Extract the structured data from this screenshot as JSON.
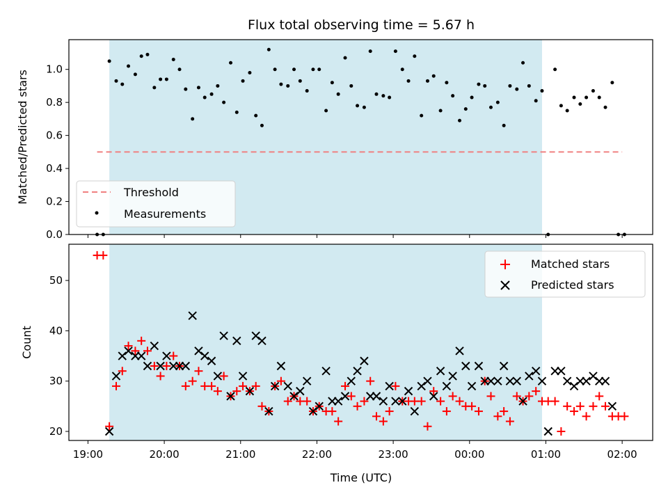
{
  "chart_data": [
    {
      "type": "scatter",
      "title": "Flux total observing time = 5.67 h",
      "ylabel": "Matched/Predicted stars",
      "xlabel": "",
      "ylim": [
        0,
        1.18
      ],
      "xlim_hours": [
        18.75,
        26.4
      ],
      "yticks": [
        0.0,
        0.2,
        0.4,
        0.6,
        0.8,
        1.0
      ],
      "ytick_labels": [
        "0.0",
        "0.2",
        "0.4",
        "0.6",
        "0.8",
        "1.0"
      ],
      "shaded_span_hours": [
        19.28,
        24.95
      ],
      "shaded_color": "#add8e6",
      "grid": false,
      "legend_position": "lower-left",
      "threshold": {
        "name": "Threshold",
        "value": 0.5,
        "x_range_hours": [
          19.12,
          26.0
        ],
        "color": "#f08080",
        "style": "dashed"
      },
      "series": [
        {
          "name": "Measurements",
          "color": "#000000",
          "x_hours": [
            19.12,
            19.2,
            19.28,
            19.37,
            19.45,
            19.53,
            19.62,
            19.7,
            19.78,
            19.87,
            19.95,
            20.03,
            20.12,
            20.2,
            20.28,
            20.37,
            20.45,
            20.53,
            20.62,
            20.7,
            20.78,
            20.87,
            20.95,
            21.03,
            21.12,
            21.2,
            21.28,
            21.37,
            21.45,
            21.53,
            21.62,
            21.7,
            21.78,
            21.87,
            21.95,
            22.03,
            22.12,
            22.2,
            22.28,
            22.37,
            22.45,
            22.53,
            22.62,
            22.7,
            22.78,
            22.87,
            22.95,
            23.03,
            23.12,
            23.2,
            23.28,
            23.37,
            23.45,
            23.53,
            23.62,
            23.7,
            23.78,
            23.87,
            23.95,
            24.03,
            24.12,
            24.2,
            24.28,
            24.37,
            24.45,
            24.53,
            24.62,
            24.7,
            24.78,
            24.87,
            24.95,
            25.03,
            25.12,
            25.2,
            25.28,
            25.37,
            25.45,
            25.53,
            25.62,
            25.7,
            25.78,
            25.87,
            25.95,
            26.03
          ],
          "y": [
            0.0,
            0.0,
            1.05,
            0.93,
            0.91,
            1.02,
            0.97,
            1.08,
            1.09,
            0.89,
            0.94,
            0.94,
            1.06,
            1.0,
            0.88,
            0.7,
            0.89,
            0.83,
            0.85,
            0.9,
            0.8,
            1.04,
            0.74,
            0.93,
            0.98,
            0.72,
            0.66,
            1.12,
            1.0,
            0.91,
            0.9,
            1.0,
            0.93,
            0.87,
            1.0,
            1.0,
            0.75,
            0.92,
            0.85,
            1.07,
            0.9,
            0.78,
            0.77,
            1.11,
            0.85,
            0.84,
            0.83,
            1.11,
            1.0,
            0.93,
            1.08,
            0.72,
            0.93,
            0.96,
            0.75,
            0.92,
            0.84,
            0.69,
            0.76,
            0.83,
            0.91,
            0.9,
            0.77,
            0.8,
            0.66,
            0.9,
            0.88,
            1.04,
            0.9,
            0.81,
            0.87,
            0.0,
            1.0,
            0.78,
            0.75,
            0.83,
            0.79,
            0.83,
            0.87,
            0.83,
            0.77,
            0.92,
            0.0,
            0.0
          ]
        }
      ]
    },
    {
      "type": "scatter",
      "title": "",
      "xlabel": "Time (UTC)",
      "ylabel": "Count",
      "ylim": [
        18.2,
        57.2
      ],
      "xlim_hours": [
        18.75,
        26.4
      ],
      "yticks": [
        20,
        30,
        40,
        50
      ],
      "ytick_labels": [
        "20",
        "30",
        "40",
        "50"
      ],
      "xticks_hours": [
        19,
        20,
        21,
        22,
        23,
        24,
        25,
        26
      ],
      "xtick_labels": [
        "19:00",
        "20:00",
        "21:00",
        "22:00",
        "23:00",
        "00:00",
        "01:00",
        "02:00"
      ],
      "shaded_span_hours": [
        19.28,
        24.95
      ],
      "shaded_color": "#add8e6",
      "grid": false,
      "legend_position": "top-right",
      "series": [
        {
          "name": "Matched stars",
          "marker": "plus",
          "color": "#ff0000",
          "x_hours": [
            19.12,
            19.2,
            19.28,
            19.37,
            19.45,
            19.53,
            19.62,
            19.7,
            19.78,
            19.87,
            19.95,
            20.03,
            20.12,
            20.2,
            20.28,
            20.37,
            20.45,
            20.53,
            20.62,
            20.7,
            20.78,
            20.87,
            20.95,
            21.03,
            21.12,
            21.2,
            21.28,
            21.37,
            21.45,
            21.53,
            21.62,
            21.7,
            21.78,
            21.87,
            21.95,
            22.03,
            22.12,
            22.2,
            22.28,
            22.37,
            22.45,
            22.53,
            22.62,
            22.7,
            22.78,
            22.87,
            22.95,
            23.03,
            23.12,
            23.2,
            23.28,
            23.37,
            23.45,
            23.53,
            23.62,
            23.7,
            23.78,
            23.87,
            23.95,
            24.03,
            24.12,
            24.2,
            24.28,
            24.37,
            24.45,
            24.53,
            24.62,
            24.7,
            24.78,
            24.87,
            24.95,
            25.03,
            25.12,
            25.2,
            25.28,
            25.37,
            25.45,
            25.53,
            25.62,
            25.7,
            25.78,
            25.87,
            25.95,
            26.03
          ],
          "y": [
            55,
            55,
            21,
            29,
            32,
            37,
            36,
            38,
            36,
            33,
            31,
            33,
            35,
            33,
            29,
            30,
            32,
            29,
            29,
            28,
            31,
            27,
            28,
            29,
            28,
            29,
            25,
            24,
            29,
            30,
            26,
            27,
            26,
            26,
            24,
            25,
            24,
            24,
            22,
            29,
            27,
            25,
            26,
            30,
            23,
            22,
            24,
            29,
            26,
            26,
            26,
            26,
            21,
            28,
            26,
            24,
            27,
            26,
            25,
            25,
            24,
            30,
            27,
            23,
            24,
            22,
            27,
            26,
            27,
            28,
            26,
            26,
            26,
            20,
            25,
            24,
            25,
            23,
            25,
            27,
            25,
            23,
            23,
            23
          ]
        },
        {
          "name": "Predicted stars",
          "marker": "x",
          "color": "#000000",
          "x_hours": [
            19.28,
            19.37,
            19.45,
            19.53,
            19.62,
            19.7,
            19.78,
            19.87,
            19.95,
            20.03,
            20.12,
            20.2,
            20.28,
            20.37,
            20.45,
            20.53,
            20.62,
            20.7,
            20.78,
            20.87,
            20.95,
            21.03,
            21.12,
            21.2,
            21.28,
            21.37,
            21.45,
            21.53,
            21.62,
            21.7,
            21.78,
            21.87,
            21.95,
            22.03,
            22.12,
            22.2,
            22.28,
            22.37,
            22.45,
            22.53,
            22.62,
            22.7,
            22.78,
            22.87,
            22.95,
            23.03,
            23.12,
            23.2,
            23.28,
            23.37,
            23.45,
            23.53,
            23.62,
            23.7,
            23.78,
            23.87,
            23.95,
            24.03,
            24.12,
            24.2,
            24.28,
            24.37,
            24.45,
            24.53,
            24.62,
            24.7,
            24.78,
            24.87,
            24.95,
            25.03,
            25.12,
            25.2,
            25.28,
            25.37,
            25.45,
            25.53,
            25.62,
            25.7,
            25.78,
            25.87
          ],
          "y": [
            20,
            31,
            35,
            36,
            35,
            35,
            33,
            37,
            33,
            35,
            33,
            33,
            33,
            43,
            36,
            35,
            34,
            31,
            39,
            27,
            38,
            31,
            28,
            39,
            38,
            24,
            29,
            33,
            29,
            27,
            28,
            30,
            24,
            25,
            32,
            26,
            26,
            27,
            30,
            32,
            34,
            27,
            27,
            26,
            29,
            26,
            26,
            28,
            24,
            29,
            30,
            27,
            32,
            29,
            31,
            36,
            33,
            29,
            33,
            30,
            30,
            30,
            33,
            30,
            30,
            26,
            31,
            32,
            30,
            20,
            32,
            32,
            30,
            29,
            30,
            30,
            31,
            30,
            30,
            25
          ]
        }
      ]
    }
  ]
}
